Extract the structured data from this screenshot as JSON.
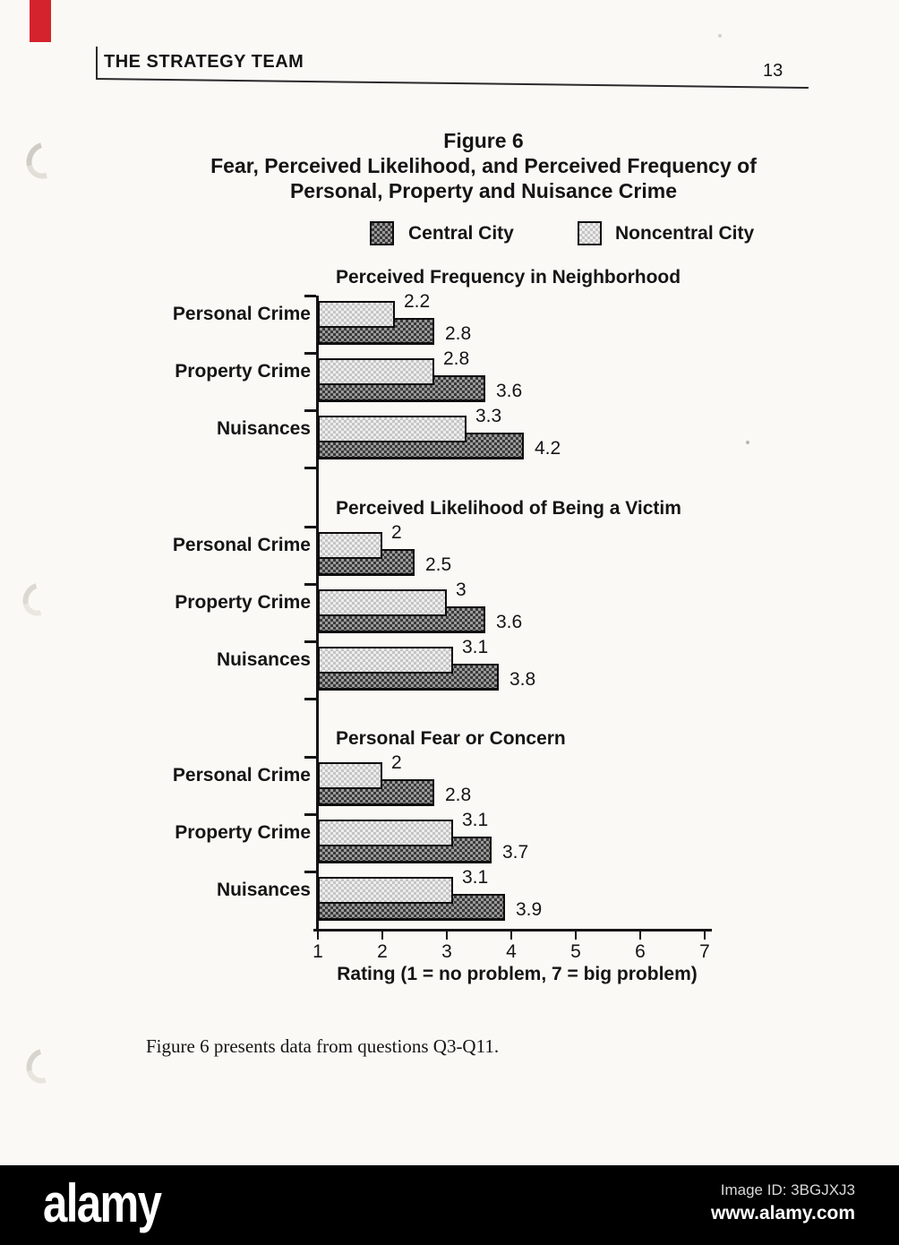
{
  "page": {
    "header_title": "THE STRATEGY TEAM",
    "page_number": "13"
  },
  "figure_title": {
    "line1": "Figure 6",
    "line2": "Fear, Perceived Likelihood, and Perceived Frequency of",
    "line3": "Personal, Property and Nuisance Crime"
  },
  "legend": [
    {
      "label": "Central City",
      "series": "central",
      "pattern": "dark-checker"
    },
    {
      "label": "Noncentral City",
      "series": "noncentral",
      "pattern": "light-checker"
    }
  ],
  "chart_data": {
    "type": "bar",
    "orientation": "horizontal",
    "title": "Fear, Perceived Likelihood, and Perceived Frequency of Personal, Property and Nuisance Crime",
    "xlabel": "Rating (1 = no problem, 7 = big problem)",
    "xlim": [
      1,
      7
    ],
    "axis": {
      "min": 1,
      "max": 7,
      "ticks": [
        "1",
        "2",
        "3",
        "4",
        "5",
        "6",
        "7"
      ],
      "label": "Rating (1 = no problem, 7 = big problem)"
    },
    "series_names": [
      "Noncentral City",
      "Central City"
    ],
    "groups": [
      {
        "heading": "Perceived Frequency in Neighborhood",
        "categories": [
          "Personal Crime",
          "Property Crime",
          "Nuisances"
        ],
        "noncentral": [
          2.2,
          2.8,
          3.3
        ],
        "central": [
          2.8,
          3.6,
          4.2
        ],
        "noncentral_labels": [
          "2.2",
          "2.8",
          "3.3"
        ],
        "central_labels": [
          "2.8",
          "3.6",
          "4.2"
        ]
      },
      {
        "heading": "Perceived Likelihood of Being a Victim",
        "categories": [
          "Personal Crime",
          "Property Crime",
          "Nuisances"
        ],
        "noncentral": [
          2,
          3,
          3.1
        ],
        "central": [
          2.5,
          3.6,
          3.8
        ],
        "noncentral_labels": [
          "2",
          "3",
          "3.1"
        ],
        "central_labels": [
          "2.5",
          "3.6",
          "3.8"
        ]
      },
      {
        "heading": "Personal Fear or Concern",
        "categories": [
          "Personal Crime",
          "Property Crime",
          "Nuisances"
        ],
        "noncentral": [
          2,
          3.1,
          3.1
        ],
        "central": [
          2.8,
          3.7,
          3.9
        ],
        "noncentral_labels": [
          "2",
          "3.1",
          "3.1"
        ],
        "central_labels": [
          "2.8",
          "3.7",
          "3.9"
        ]
      }
    ],
    "legend_position": "top"
  },
  "caption": "Figure 6 presents data from questions Q3-Q11.",
  "watermark": {
    "logo": "alamy",
    "image_id": "Image ID: 3BGJXJ3",
    "url": "www.alamy.com"
  },
  "colors": {
    "paper": "#faf9f6",
    "ink": "#151515",
    "red_tab": "#d5232d",
    "bar_dark_a": "#3a3a3a",
    "bar_dark_b": "#9a9a9a",
    "bar_light_a": "#c5c5c5",
    "bar_light_b": "#ededed",
    "watermark_bg": "#000000"
  }
}
